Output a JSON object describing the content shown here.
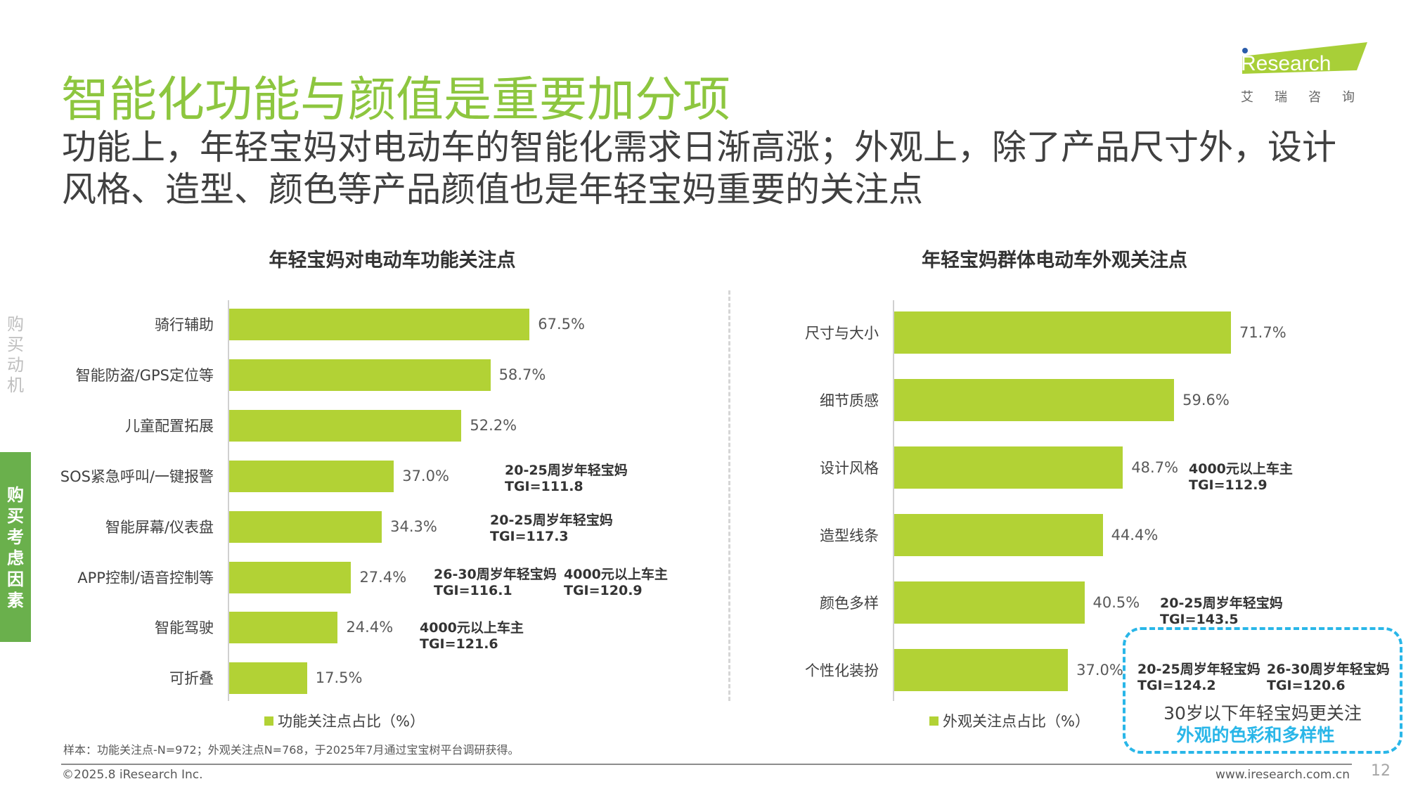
{
  "header": {
    "title": "智能化功能与颜值是重要加分项",
    "subtitle": "功能上，年轻宝妈对电动车的智能化需求日渐高涨；外观上，除了产品尺寸外，设计风格、造型、颜色等产品颜值也是年轻宝妈重要的关注点"
  },
  "logo": {
    "text": "iResearch",
    "cn": "艾 瑞 咨 询"
  },
  "side": {
    "tab_inactive": "购买动机",
    "tab_active": "购买考虑因素"
  },
  "colors": {
    "bar": "#b2d235",
    "title": "#8dc63f",
    "highlight": "#29b6e8",
    "tab": "#6ab04c"
  },
  "chart_data": [
    {
      "type": "bar",
      "orientation": "horizontal",
      "title": "年轻宝妈对电动车功能关注点",
      "categories": [
        "骑行辅助",
        "智能防盗/GPS定位等",
        "儿童配置拓展",
        "SOS紧急呼叫/一键报警",
        "智能屏幕/仪表盘",
        "APP控制/语音控制等",
        "智能驾驶",
        "可折叠"
      ],
      "values": [
        67.5,
        58.7,
        52.2,
        37.0,
        34.3,
        27.4,
        24.4,
        17.5
      ],
      "value_labels": [
        "67.5%",
        "58.7%",
        "52.2%",
        "37.0%",
        "34.3%",
        "27.4%",
        "24.4%",
        "17.5%"
      ],
      "legend": "功能关注点占比（%）",
      "annotations": [
        {
          "category_index": 3,
          "lines": [
            "20-25周岁年轻宝妈",
            "TGI=111.8"
          ]
        },
        {
          "category_index": 4,
          "lines": [
            "20-25周岁年轻宝妈",
            "TGI=117.3"
          ]
        },
        {
          "category_index": 5,
          "lines": [
            "26-30周岁年轻宝妈",
            "TGI=116.1"
          ]
        },
        {
          "category_index": 5,
          "lines": [
            "4000元以上车主",
            "TGI=120.9"
          ]
        },
        {
          "category_index": 6,
          "lines": [
            "4000元以上车主",
            "TGI=121.6"
          ]
        }
      ]
    },
    {
      "type": "bar",
      "orientation": "horizontal",
      "title": "年轻宝妈群体电动车外观关注点",
      "categories": [
        "尺寸与大小",
        "细节质感",
        "设计风格",
        "造型线条",
        "颜色多样",
        "个性化装扮"
      ],
      "values": [
        71.7,
        59.6,
        48.7,
        44.4,
        40.5,
        37.0
      ],
      "value_labels": [
        "71.7%",
        "59.6%",
        "48.7%",
        "44.4%",
        "40.5%",
        "37.0%"
      ],
      "legend": "外观关注点占比（%）",
      "annotations": [
        {
          "category_index": 2,
          "lines": [
            "4000元以上车主",
            "TGI=112.9"
          ]
        },
        {
          "category_index": 4,
          "lines": [
            "20-25周岁年轻宝妈",
            "TGI=143.5"
          ]
        },
        {
          "category_index": 5,
          "lines": [
            "20-25周岁年轻宝妈",
            "TGI=124.2"
          ]
        },
        {
          "category_index": 5,
          "lines": [
            "26-30周岁年轻宝妈",
            "TGI=120.6"
          ]
        }
      ]
    }
  ],
  "callout": {
    "line1": "30岁以下年轻宝妈更关注",
    "line2": "外观的色彩和多样性"
  },
  "footer": {
    "note": "样本：功能关注点-N=972；外观关注点N=768，于2025年7月通过宝宝树平台调研获得。",
    "copyright": "©2025.8 iResearch Inc.",
    "website": "www.iresearch.com.cn",
    "page": "12"
  }
}
